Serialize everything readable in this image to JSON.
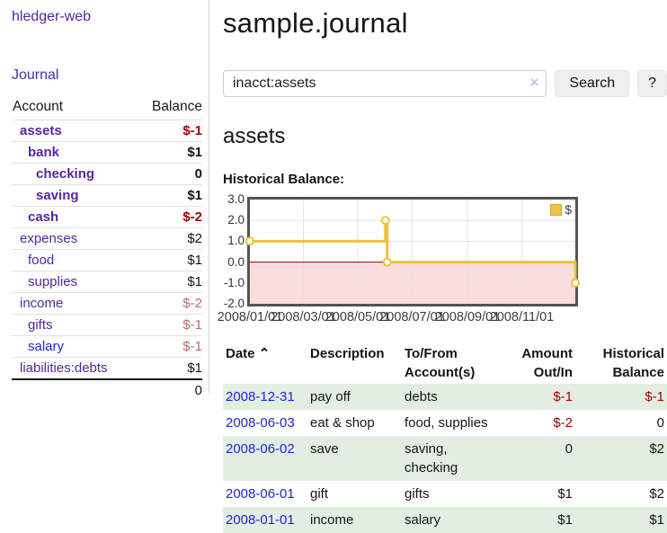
{
  "colors": {
    "link_purple": "#54279c",
    "link_blue": "#2323d9",
    "negative_strong": "#a40000",
    "negative_soft": "#bd6a6a",
    "row_stripe_green": "#e3eee3",
    "series_gold": "#EDC240",
    "negative_region_pink": "#fbdddd",
    "zero_line_red": "#8b0000"
  },
  "sidebar": {
    "brand": "hledger-web",
    "journal_link": "Journal",
    "accounts_table": {
      "headers": {
        "account": "Account",
        "balance": "Balance"
      },
      "rows": [
        {
          "name": "assets",
          "indent": 1,
          "bold": true,
          "balance": "$-1"
        },
        {
          "name": "bank",
          "indent": 2,
          "bold": true,
          "balance": "$1"
        },
        {
          "name": "checking",
          "indent": 3,
          "bold": true,
          "balance": "0"
        },
        {
          "name": "saving",
          "indent": 3,
          "bold": true,
          "balance": "$1"
        },
        {
          "name": "cash",
          "indent": 2,
          "bold": true,
          "balance": "$-2"
        },
        {
          "name": "expenses",
          "indent": 1,
          "bold": false,
          "balance": "$2"
        },
        {
          "name": "food",
          "indent": 2,
          "bold": false,
          "balance": "$1"
        },
        {
          "name": "supplies",
          "indent": 2,
          "bold": false,
          "balance": "$1"
        },
        {
          "name": "income",
          "indent": 1,
          "bold": false,
          "balance": "$-2"
        },
        {
          "name": "gifts",
          "indent": 2,
          "bold": false,
          "balance": "$-1"
        },
        {
          "name": "salary",
          "indent": 2,
          "bold": false,
          "balance": "$-1",
          "unvisited": true
        },
        {
          "name": "liabilities:debts",
          "indent": 1,
          "bold": false,
          "balance": "$1"
        }
      ],
      "total": "0"
    }
  },
  "main": {
    "title": "sample.journal",
    "search": {
      "value": "inacct:assets",
      "clear_icon": "×",
      "search_button": "Search",
      "help_button": "?"
    },
    "account_heading": "assets",
    "chart_heading": "Historical Balance:"
  },
  "chart_data": {
    "type": "line",
    "step": true,
    "title": "Historical Balance:",
    "series": [
      {
        "name": "$",
        "color": "#EDC240",
        "points": [
          {
            "x": "2008/01/01",
            "y": 1
          },
          {
            "x": "2008/06/01",
            "y": 2
          },
          {
            "x": "2008/06/03",
            "y": 0
          },
          {
            "x": "2008/12/31",
            "y": -1
          }
        ]
      }
    ],
    "x_ticks": [
      "2008/01/01",
      "2008/03/01",
      "2008/05/01",
      "2008/07/01",
      "2008/09/01",
      "2008/11/01"
    ],
    "y_ticks": [
      3.0,
      2.0,
      1.0,
      0.0,
      -1.0,
      -2.0
    ],
    "ylim": [
      -2,
      3
    ],
    "xlim": [
      "2008/01/01",
      "2008/12/31"
    ],
    "grid": true,
    "legend": {
      "label": "$",
      "position": "top-right"
    },
    "negative_fill": "#fbdddd",
    "zero_line_color": "#8b0000"
  },
  "register_table": {
    "sort_icon": "⌃",
    "headers": {
      "date": "Date",
      "description": "Description",
      "accounts": "To/From Account(s)",
      "amount": "Amount Out/In",
      "balance": "Historical Balance"
    },
    "rows": [
      {
        "date": "2008-12-31",
        "description": "pay off",
        "accounts": "debts",
        "amount": "$-1",
        "balance": "$-1"
      },
      {
        "date": "2008-06-03",
        "description": "eat & shop",
        "accounts": "food, supplies",
        "amount": "$-2",
        "balance": "0"
      },
      {
        "date": "2008-06-02",
        "description": "save",
        "accounts": "saving, checking",
        "amount": "0",
        "balance": "$2"
      },
      {
        "date": "2008-06-01",
        "description": "gift",
        "accounts": "gifts",
        "amount": "$1",
        "balance": "$2"
      },
      {
        "date": "2008-01-01",
        "description": "income",
        "accounts": "salary",
        "amount": "$1",
        "balance": "$1"
      }
    ]
  }
}
